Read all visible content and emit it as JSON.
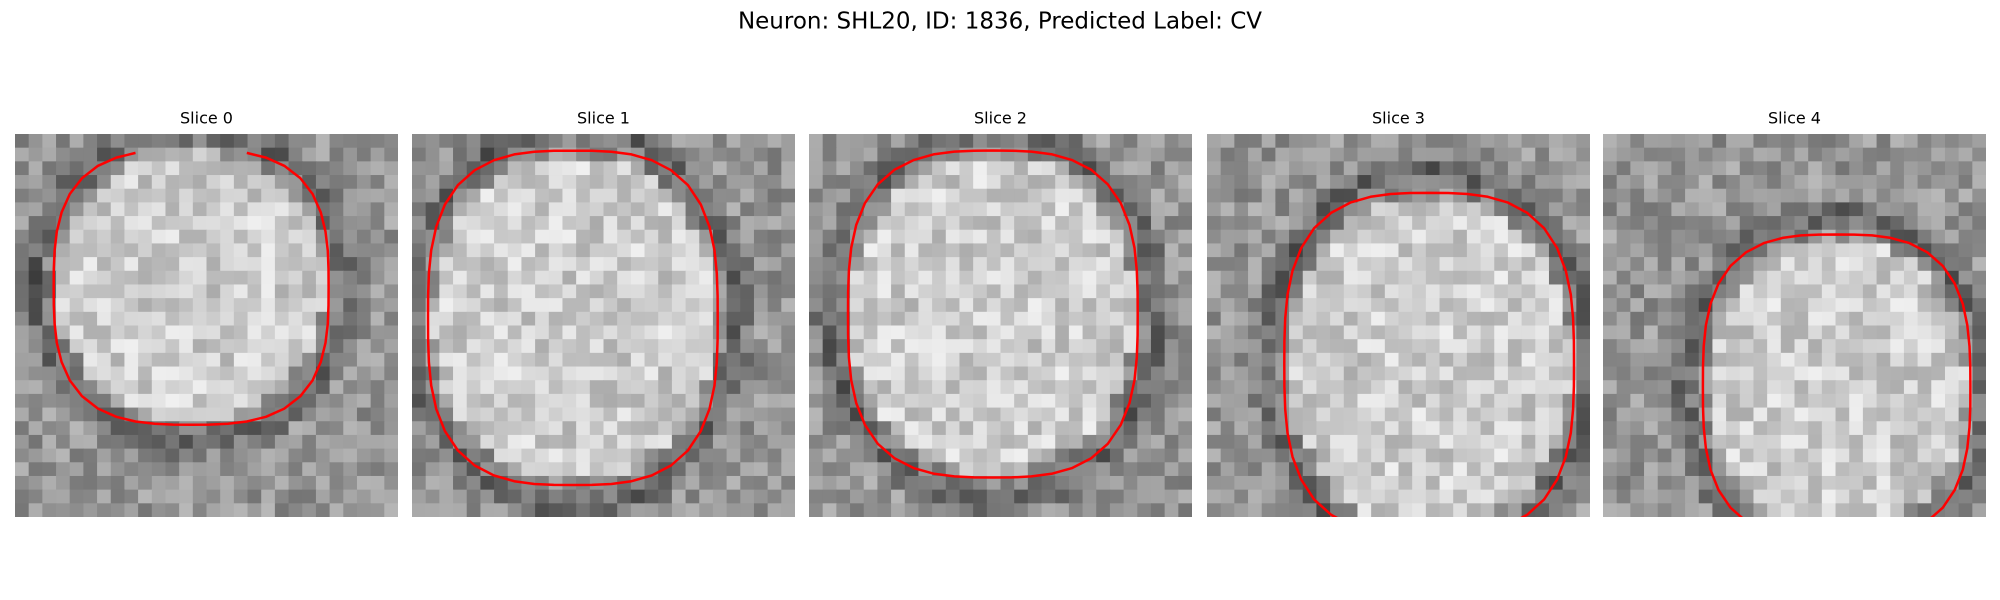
{
  "title": "Neuron: SHL20, ID: 1836, Predicted Label: CV",
  "panels": [
    {
      "title": "Slice 0"
    },
    {
      "title": "Slice 1"
    },
    {
      "title": "Slice 2"
    },
    {
      "title": "Slice 3"
    },
    {
      "title": "Slice 4"
    }
  ]
}
